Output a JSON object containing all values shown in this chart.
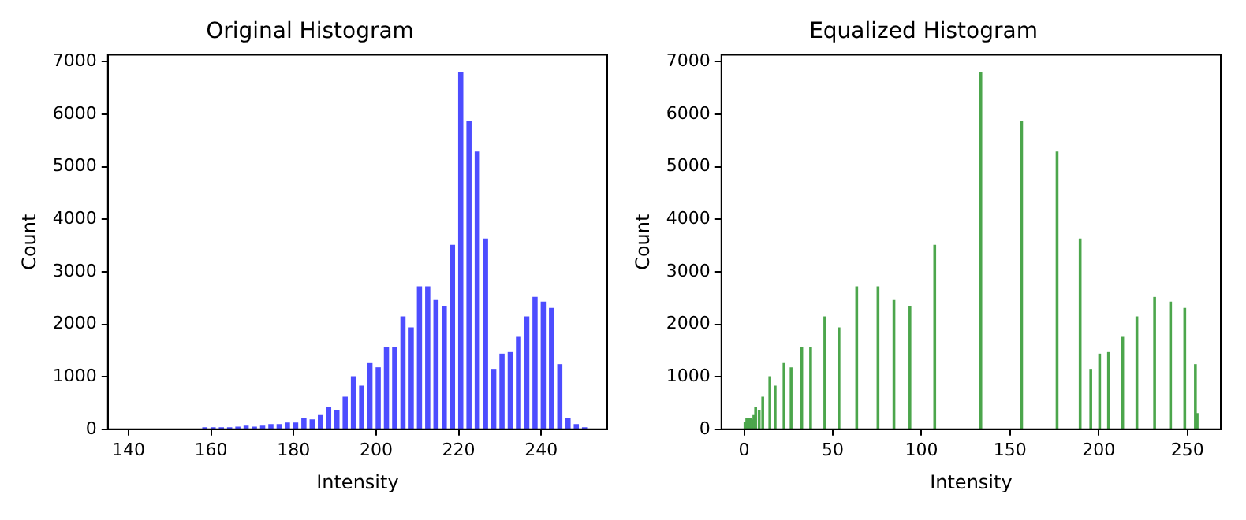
{
  "chart_data": [
    {
      "type": "histogram",
      "title": "Original Histogram",
      "xlabel": "Intensity",
      "ylabel": "Count",
      "color": "#4d4dff",
      "bins": [
        158,
        159,
        160,
        161,
        162,
        163,
        164,
        165,
        166,
        167,
        168,
        169,
        170,
        171,
        172,
        173,
        174,
        175,
        176,
        177,
        178,
        179,
        180,
        181,
        182,
        183,
        184,
        185,
        186,
        187,
        188,
        189,
        190,
        191,
        192,
        193,
        194,
        195,
        196,
        197,
        198,
        199,
        200,
        201,
        202,
        203,
        204,
        205,
        206,
        207,
        208,
        209,
        210,
        211,
        212,
        213,
        214,
        215,
        216,
        217,
        218,
        219,
        220,
        221,
        222,
        223,
        224,
        225,
        226,
        227,
        228,
        229,
        230,
        231,
        232,
        233,
        234,
        235,
        236,
        237,
        238,
        239,
        240,
        241,
        242,
        243,
        244,
        245,
        246,
        247,
        248,
        249,
        250,
        251
      ],
      "values": [
        30,
        0,
        30,
        0,
        30,
        0,
        30,
        0,
        40,
        0,
        60,
        0,
        40,
        0,
        60,
        0,
        90,
        0,
        90,
        0,
        120,
        0,
        120,
        0,
        200,
        0,
        180,
        0,
        260,
        0,
        410,
        0,
        350,
        0,
        610,
        0,
        1000,
        0,
        820,
        0,
        1250,
        0,
        1170,
        0,
        1550,
        0,
        1550,
        0,
        2140,
        0,
        1930,
        0,
        2710,
        0,
        2710,
        0,
        2450,
        0,
        2330,
        0,
        3500,
        0,
        6790,
        0,
        5860,
        0,
        5280,
        0,
        3620,
        0,
        1140,
        0,
        1430,
        0,
        1460,
        0,
        1750,
        0,
        2140,
        0,
        2510,
        0,
        2420,
        0,
        2300,
        0,
        1230,
        0,
        210,
        0,
        90,
        0,
        30
      ],
      "xlim": [
        135,
        256
      ],
      "xticks": [
        140,
        160,
        180,
        200,
        220,
        240
      ],
      "ylim": [
        0,
        7130
      ],
      "yticks": [
        0,
        1000,
        2000,
        3000,
        4000,
        5000,
        6000,
        7000
      ]
    },
    {
      "type": "histogram",
      "title": "Equalized Histogram",
      "xlabel": "Intensity",
      "ylabel": "Count",
      "color": "#4ca64c",
      "bins": [
        0,
        1,
        2,
        3,
        4,
        5,
        6,
        7,
        8,
        9,
        10,
        11,
        14,
        15,
        17,
        18,
        22,
        23,
        26,
        27,
        32,
        33,
        37,
        38,
        45,
        46,
        53,
        54,
        63,
        64,
        75,
        76,
        84,
        85,
        93,
        94,
        107,
        108,
        133,
        134,
        156,
        157,
        176,
        177,
        189,
        190,
        195,
        196,
        200,
        201,
        205,
        206,
        213,
        214,
        221,
        222,
        231,
        232,
        240,
        241,
        248,
        249,
        254,
        255,
        256
      ],
      "values": [
        130,
        200,
        200,
        200,
        180,
        260,
        410,
        0,
        350,
        0,
        610,
        0,
        1000,
        0,
        820,
        0,
        1250,
        0,
        1170,
        0,
        1550,
        0,
        1550,
        0,
        2140,
        0,
        1930,
        0,
        2710,
        0,
        2710,
        0,
        2450,
        0,
        2330,
        0,
        3500,
        0,
        6790,
        0,
        5860,
        0,
        5280,
        0,
        3620,
        0,
        1140,
        0,
        1430,
        0,
        1460,
        0,
        1750,
        0,
        2140,
        0,
        2510,
        0,
        2420,
        0,
        2300,
        0,
        1230,
        300
      ],
      "xlim": [
        -12.8,
        268.8
      ],
      "xticks": [
        0,
        50,
        100,
        150,
        200,
        250
      ],
      "ylim": [
        0,
        7130
      ],
      "yticks": [
        0,
        1000,
        2000,
        3000,
        4000,
        5000,
        6000,
        7000
      ]
    }
  ]
}
